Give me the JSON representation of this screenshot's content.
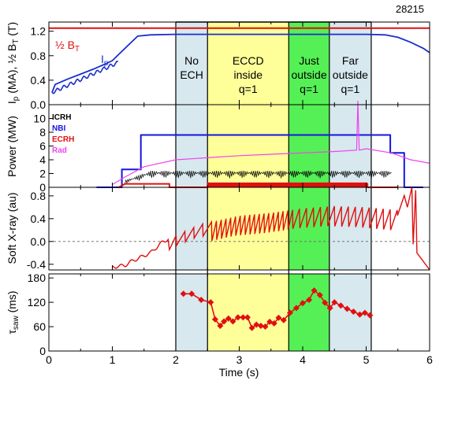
{
  "shot_number": "28215",
  "colors": {
    "no_ech": "#d7e8ee",
    "inside": "#ffff99",
    "just_outside": "#55f055",
    "far_outside": "#d7e8ee",
    "ip": "#1a2ecc",
    "half_bt": "#e01010",
    "icrh": "#000000",
    "nbi": "#1515e0",
    "ecrh": "#e01010",
    "rad": "#ee44ee",
    "sxr": "#e01010",
    "tau": "#e01010"
  },
  "shared_x": {
    "label": "Time (s)",
    "range": [
      0,
      6
    ],
    "ticks": [
      "0",
      "1",
      "2",
      "3",
      "4",
      "5",
      "6"
    ]
  },
  "phases": [
    {
      "id": "no_ech",
      "label_lines": [
        "No",
        "ECH"
      ],
      "t0": 2.0,
      "t1": 2.5
    },
    {
      "id": "inside",
      "label_lines": [
        "ECCD",
        "inside",
        "q=1"
      ],
      "t0": 2.5,
      "t1": 3.78
    },
    {
      "id": "just_outside",
      "label_lines": [
        "Just",
        "outside",
        "q=1"
      ],
      "t0": 3.78,
      "t1": 4.42
    },
    {
      "id": "far_outside",
      "label_lines": [
        "Far",
        "outside",
        "q=1"
      ],
      "t0": 4.42,
      "t1": 5.08
    }
  ],
  "chart_data": [
    {
      "type": "line",
      "panel": "current",
      "ylabel": "I_p (MA), ½ B_T (T)",
      "ylim": [
        0,
        1.35
      ],
      "yticks": [
        "0.0",
        "0.4",
        "0.8",
        "1.2"
      ],
      "annotations": [
        "½ B_T",
        "I_p"
      ],
      "series": [
        {
          "name": "½ B_T",
          "color_key": "half_bt",
          "x": [
            0,
            6
          ],
          "y": [
            1.25,
            1.25
          ]
        },
        {
          "name": "I_p",
          "color_key": "ip",
          "x": [
            0.05,
            0.1,
            0.3,
            0.5,
            0.7,
            0.9,
            1.0,
            1.2,
            1.4,
            1.6,
            2.0,
            3.0,
            4.0,
            5.0,
            5.3,
            5.5,
            5.7,
            5.9,
            6.0
          ],
          "y": [
            0.2,
            0.33,
            0.42,
            0.5,
            0.58,
            0.67,
            0.72,
            0.92,
            1.12,
            1.14,
            1.15,
            1.15,
            1.15,
            1.15,
            1.14,
            1.1,
            1.02,
            0.92,
            0.85
          ]
        }
      ]
    },
    {
      "type": "line",
      "panel": "power",
      "ylabel": "Power (MW)",
      "ylim": [
        0,
        12
      ],
      "yticks": [
        "0",
        "2",
        "4",
        "6",
        "8",
        "10"
      ],
      "legend": [
        "ICRH",
        "NBI",
        "ECRH",
        "Rad"
      ],
      "series": [
        {
          "name": "NBI",
          "color_key": "nbi",
          "x": [
            0.75,
            1.15,
            1.15,
            1.45,
            1.45,
            5.38,
            5.38,
            5.6,
            5.6,
            5.9
          ],
          "y": [
            0,
            0,
            2.6,
            2.6,
            7.6,
            7.6,
            5.0,
            5.0,
            0,
            0
          ]
        },
        {
          "name": "Rad",
          "color_key": "rad",
          "x": [
            1.0,
            1.2,
            1.5,
            2.0,
            2.5,
            3.0,
            3.5,
            4.0,
            4.5,
            4.85,
            4.87,
            4.89,
            5.0,
            5.4,
            5.7,
            6.0
          ],
          "y": [
            0.4,
            1.5,
            3.0,
            4.0,
            4.3,
            4.6,
            4.8,
            5.0,
            5.2,
            5.4,
            12.5,
            5.4,
            5.6,
            5.0,
            4.0,
            3.5
          ]
        },
        {
          "name": "ICRH",
          "color_key": "icrh",
          "x": [
            1.2,
            1.4,
            1.6,
            5.4,
            5.4
          ],
          "y": [
            1.0,
            2.3,
            2.4,
            2.4,
            0
          ]
        },
        {
          "name": "ECRH",
          "color_key": "ecrh",
          "x": [
            1.1,
            1.2,
            1.9,
            1.9,
            2.5,
            2.5,
            5.02,
            5.02,
            5.5
          ],
          "y": [
            0,
            0.5,
            0.5,
            0,
            0,
            0.5,
            0.5,
            0,
            0
          ]
        }
      ]
    },
    {
      "type": "line",
      "panel": "sxr",
      "ylabel": "Soft X-ray (au)",
      "ylim": [
        -0.5,
        0.95
      ],
      "yticks": [
        "-0.4",
        "0.0",
        "0.4",
        "0.8"
      ],
      "series": [
        {
          "name": "SXR",
          "color_key": "sxr",
          "description_points": "sawtooth crashes",
          "x": [
            1.0,
            1.2,
            1.3,
            1.4,
            1.5,
            1.6,
            1.7,
            1.8,
            2.0,
            2.4,
            3.0,
            3.5,
            4.0,
            4.5,
            5.0,
            5.5,
            5.6,
            5.72,
            5.75,
            5.8,
            6.0
          ],
          "y": [
            -0.45,
            -0.42,
            -0.35,
            -0.3,
            -0.25,
            -0.2,
            -0.1,
            0.0,
            0.1,
            0.3,
            0.45,
            0.5,
            0.58,
            0.62,
            0.6,
            0.55,
            0.8,
            0.95,
            -0.1,
            -0.3,
            -0.5
          ]
        }
      ]
    },
    {
      "type": "line",
      "panel": "tau",
      "ylabel": "τ_saw (ms)",
      "ylim": [
        0,
        190
      ],
      "yticks": [
        "0",
        "60",
        "120",
        "180"
      ],
      "series": [
        {
          "name": "τ_saw",
          "color_key": "tau",
          "x": [
            2.12,
            2.25,
            2.4,
            2.55,
            2.62,
            2.7,
            2.76,
            2.83,
            2.9,
            2.98,
            3.06,
            3.13,
            3.2,
            3.27,
            3.34,
            3.41,
            3.48,
            3.55,
            3.62,
            3.7,
            3.8,
            3.9,
            4.0,
            4.1,
            4.18,
            4.27,
            4.35,
            4.43,
            4.5,
            4.6,
            4.7,
            4.8,
            4.9,
            4.98,
            5.06
          ],
          "y": [
            141,
            141,
            126,
            120,
            78,
            62,
            73,
            80,
            73,
            83,
            83,
            83,
            57,
            65,
            62,
            60,
            72,
            68,
            82,
            76,
            94,
            106,
            118,
            126,
            149,
            138,
            119,
            106,
            120,
            112,
            104,
            97,
            90,
            94,
            88
          ]
        }
      ]
    }
  ]
}
